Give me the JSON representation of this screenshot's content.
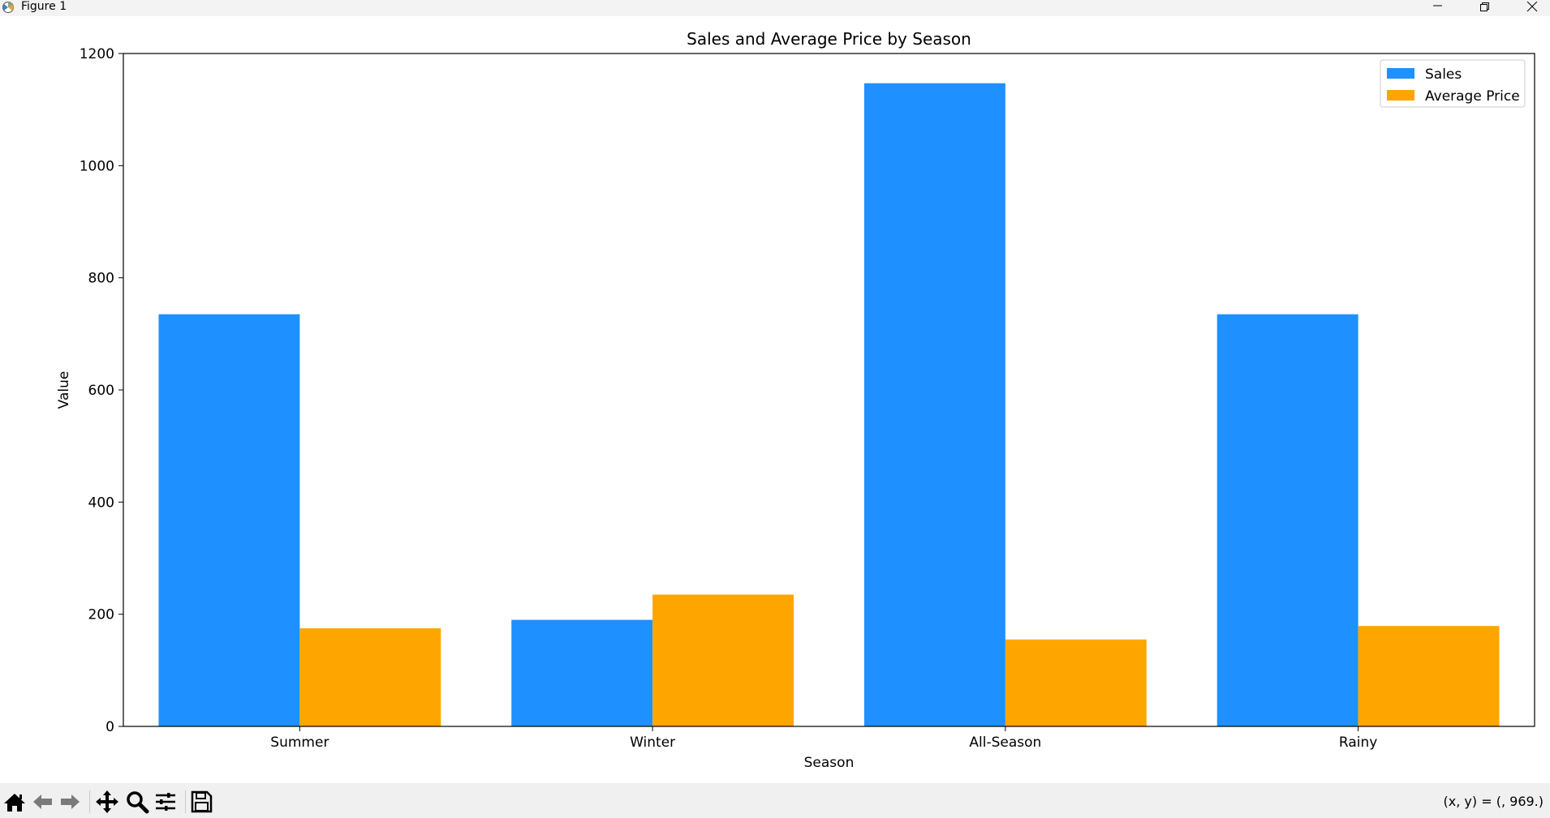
{
  "window": {
    "title": "Figure 1"
  },
  "toolbar": {
    "buttons": [
      {
        "name": "home-icon",
        "tooltip": "Reset original view"
      },
      {
        "name": "back-arrow-icon",
        "tooltip": "Back"
      },
      {
        "name": "forward-arrow-icon",
        "tooltip": "Forward"
      },
      {
        "name": "pan-icon",
        "tooltip": "Pan"
      },
      {
        "name": "zoom-icon",
        "tooltip": "Zoom"
      },
      {
        "name": "configure-subplots-icon",
        "tooltip": "Configure subplots"
      },
      {
        "name": "save-icon",
        "tooltip": "Save"
      }
    ],
    "coords": "(x, y) = (, 969.)"
  },
  "colors": {
    "sales": "#1e90ff",
    "average_price": "#ffa500"
  },
  "chart_data": {
    "type": "bar",
    "title": "Sales and Average Price by Season",
    "xlabel": "Season",
    "ylabel": "Value",
    "categories": [
      "Summer",
      "Winter",
      "All-Season",
      "Rainy"
    ],
    "series": [
      {
        "name": "Sales",
        "values": [
          735,
          190,
          1147,
          735
        ],
        "color": "#1e90ff"
      },
      {
        "name": "Average Price",
        "values": [
          175,
          235,
          155,
          179
        ],
        "color": "#ffa500"
      }
    ],
    "ylim": [
      0,
      1200
    ],
    "yticks": [
      0,
      200,
      400,
      600,
      800,
      1000,
      1200
    ],
    "grid": false,
    "legend": "top-right"
  }
}
